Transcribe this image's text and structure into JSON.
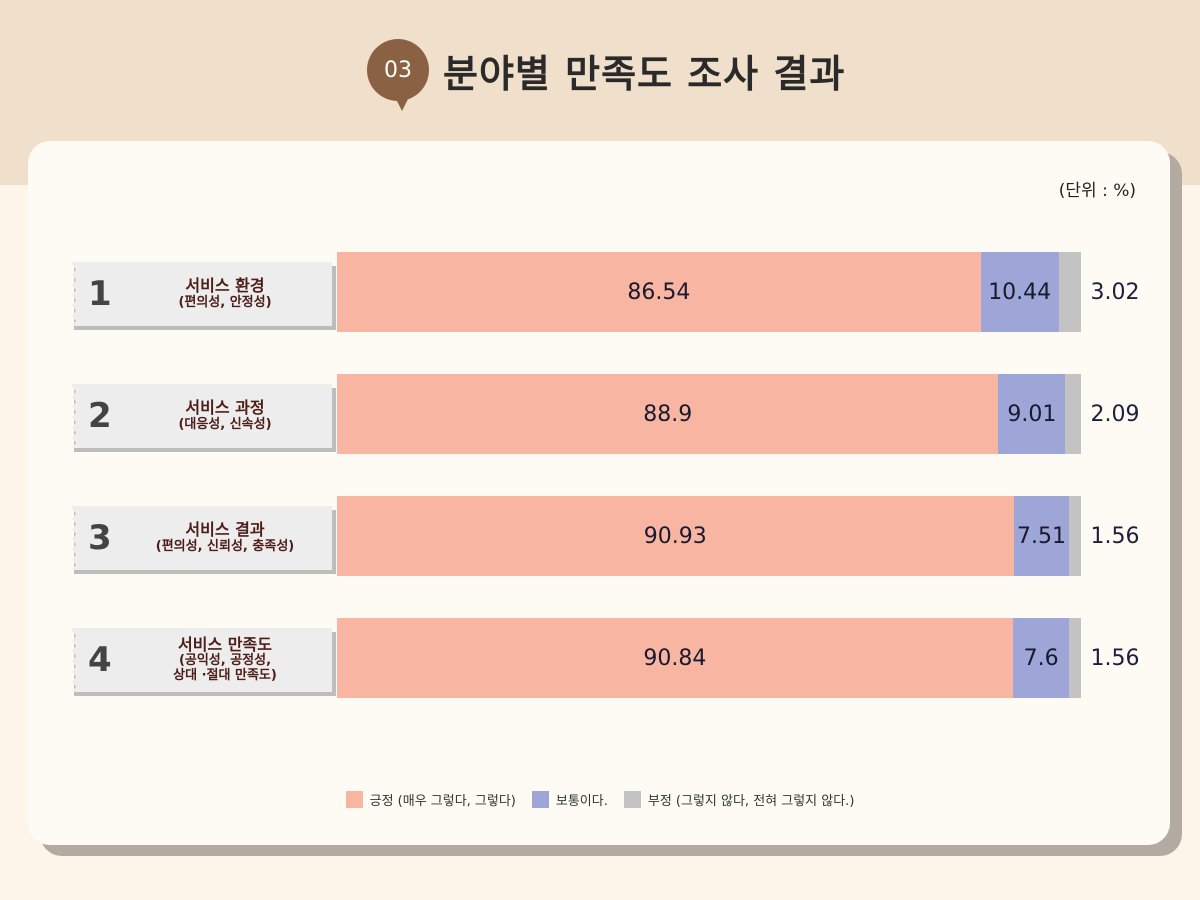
{
  "header": {
    "badge": "03",
    "title": "분야별 만족도 조사 결과"
  },
  "unit_label": "(단위 : %)",
  "colors": {
    "positive": "#f8b6a2",
    "neutral": "#9ea6d8",
    "negative": "#c3c3c3"
  },
  "chart_data": {
    "type": "bar",
    "orientation": "horizontal",
    "stacked": true,
    "xlim": [
      0,
      100
    ],
    "categories": [
      {
        "number": "1",
        "title": "서비스 환경",
        "subtitle": [
          "(편의성, 안정성)"
        ]
      },
      {
        "number": "2",
        "title": "서비스 과정",
        "subtitle": [
          "(대응성, 신속성)"
        ]
      },
      {
        "number": "3",
        "title": "서비스 결과",
        "subtitle": [
          "(편의성, 신뢰성, 충족성)"
        ]
      },
      {
        "number": "4",
        "title": "서비스 만족도",
        "subtitle": [
          "(공익성, 공정성,",
          "상대 ·절대 만족도)"
        ]
      }
    ],
    "series": [
      {
        "name": "긍정 (매우 그렇다, 그렇다)",
        "values": [
          86.54,
          88.9,
          90.93,
          90.84
        ]
      },
      {
        "name": "보통이다.",
        "values": [
          10.44,
          9.01,
          7.51,
          7.6
        ]
      },
      {
        "name": "부정 (그렇지 않다, 전혀 그렇지 않다.)",
        "values": [
          3.02,
          2.09,
          1.56,
          1.56
        ]
      }
    ],
    "value_labels": [
      [
        "86.54",
        "10.44",
        "3.02"
      ],
      [
        "88.9",
        "9.01",
        "2.09"
      ],
      [
        "90.93",
        "7.51",
        "1.56"
      ],
      [
        "90.84",
        "7.6",
        "1.56"
      ]
    ]
  }
}
